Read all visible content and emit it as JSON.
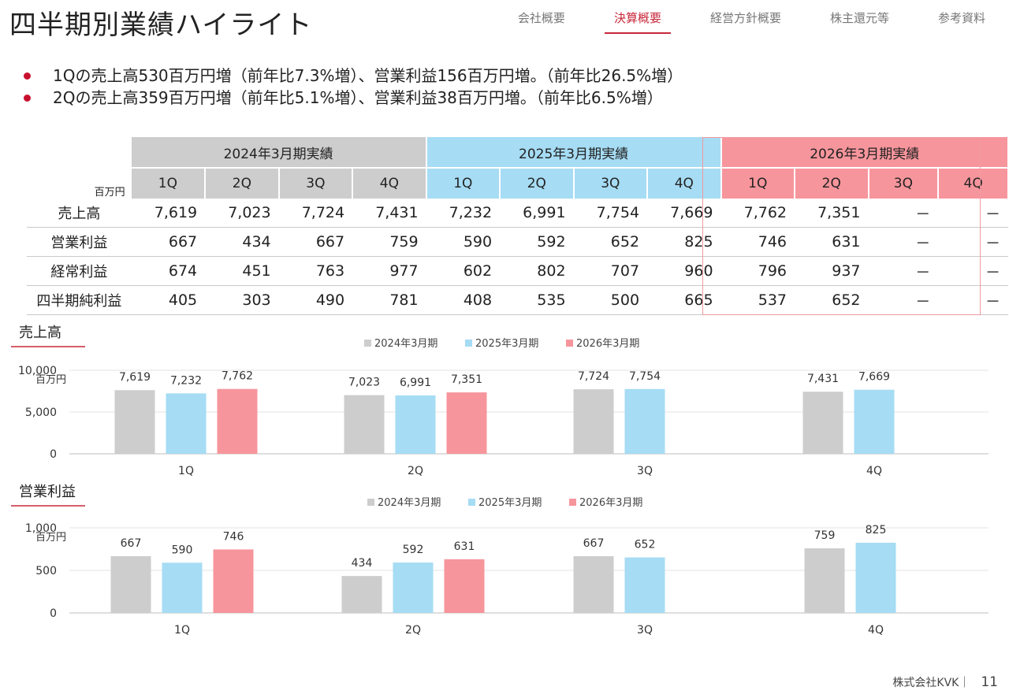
{
  "title": "四半期別業績ハイライト",
  "nav": [
    "会社概要",
    "決算概要",
    "経営方針概要",
    "株主還元等",
    "参考資料"
  ],
  "nav_active": 1,
  "bullets": [
    "1Qの売上高530百万円増（前年比7.3%増）、営業利益156百万円増。（前年比26.5%増）",
    "2Qの売上高359百万円増（前年比5.1%増）、営業利益38百万円増。（前年比6.5%増）"
  ],
  "table": {
    "unit": "百万円",
    "years": [
      "2024年3月期実績",
      "2025年3月期実績",
      "2026年3月期実績"
    ],
    "quarters": [
      "1Q",
      "2Q",
      "3Q",
      "4Q"
    ],
    "rows": [
      {
        "label": "売上高",
        "values": [
          "7,619",
          "7,023",
          "7,724",
          "7,431",
          "7,232",
          "6,991",
          "7,754",
          "7,669",
          "7,762",
          "7,351",
          "－",
          "－"
        ]
      },
      {
        "label": "営業利益",
        "values": [
          "667",
          "434",
          "667",
          "759",
          "590",
          "592",
          "652",
          "825",
          "746",
          "631",
          "－",
          "－"
        ]
      },
      {
        "label": "経常利益",
        "values": [
          "674",
          "451",
          "763",
          "977",
          "602",
          "802",
          "707",
          "960",
          "796",
          "937",
          "－",
          "－"
        ]
      },
      {
        "label": "四半期純利益",
        "values": [
          "405",
          "303",
          "490",
          "781",
          "408",
          "535",
          "500",
          "665",
          "537",
          "652",
          "－",
          "－"
        ]
      }
    ]
  },
  "colors": {
    "y2024": "#cdcdcd",
    "y2025": "#a6dcf4",
    "y2026": "#f7959c",
    "accent": "#c8283a"
  },
  "chart_data": [
    {
      "type": "bar",
      "title": "売上高",
      "unit": "百万円",
      "categories": [
        "1Q",
        "2Q",
        "3Q",
        "4Q"
      ],
      "series": [
        {
          "name": "2024年3月期",
          "values": [
            7619,
            7023,
            7724,
            7431
          ]
        },
        {
          "name": "2025年3月期",
          "values": [
            7232,
            6991,
            7754,
            7669
          ]
        },
        {
          "name": "2026年3月期",
          "values": [
            7762,
            7351,
            null,
            null
          ]
        }
      ],
      "yticks": [
        0,
        5000,
        10000
      ],
      "ytick_labels": [
        "0",
        "5,000",
        "10,000"
      ],
      "ylim": [
        0,
        10000
      ],
      "legend": "top-center"
    },
    {
      "type": "bar",
      "title": "営業利益",
      "unit": "百万円",
      "categories": [
        "1Q",
        "2Q",
        "3Q",
        "4Q"
      ],
      "series": [
        {
          "name": "2024年3月期",
          "values": [
            667,
            434,
            667,
            759
          ]
        },
        {
          "name": "2025年3月期",
          "values": [
            590,
            592,
            652,
            825
          ]
        },
        {
          "name": "2026年3月期",
          "values": [
            746,
            631,
            null,
            null
          ]
        }
      ],
      "yticks": [
        0,
        500,
        1000
      ],
      "ytick_labels": [
        "0",
        "500",
        "1,000"
      ],
      "ylim": [
        0,
        1000
      ],
      "legend": "top-center"
    }
  ],
  "footer": {
    "company": "株式会社KVK｜",
    "page": "11"
  }
}
